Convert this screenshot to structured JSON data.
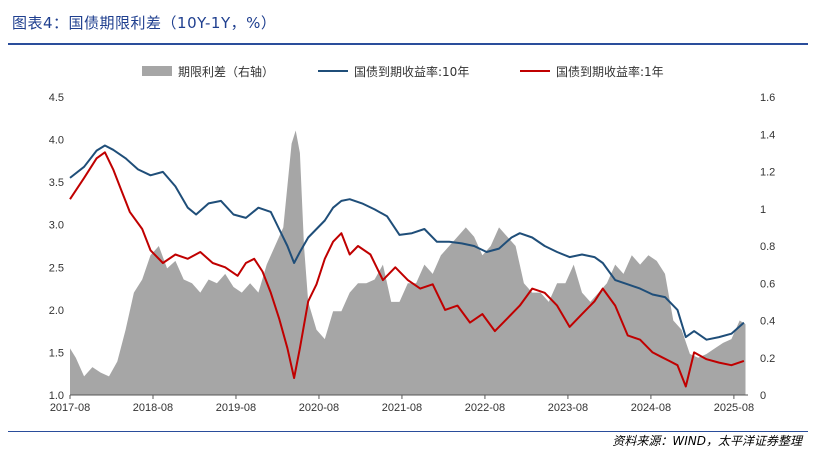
{
  "header": {
    "title": "图表4：国债期限利差（10Y-1Y，%）"
  },
  "footer": {
    "source": "资料来源：WIND，太平洋证券整理"
  },
  "colors": {
    "title": "#1f3f8f",
    "spread": "#a6a6a6",
    "ten_year": "#1f4e79",
    "one_year": "#c00000"
  },
  "chart_data": {
    "type": "line",
    "title": "国债期限利差（10Y-1Y，%）",
    "x_ticks": [
      "2017-08",
      "2018-08",
      "2019-08",
      "2020-08",
      "2021-08",
      "2022-08",
      "2023-08",
      "2024-08",
      "2025-08"
    ],
    "x_range": [
      2017.58,
      2025.75
    ],
    "y_left": {
      "ticks": [
        "4.5",
        "4.0",
        "3.5",
        "3.0",
        "2.5",
        "2.0",
        "1.5",
        "1.0"
      ],
      "range": [
        1.0,
        4.5
      ]
    },
    "y_right": {
      "ticks": [
        "1.6",
        "1.4",
        "1.2",
        "1",
        "0.8",
        "0.6",
        "0.4",
        "0.2",
        "0"
      ],
      "range": [
        0,
        1.6
      ]
    },
    "legend": [
      {
        "name": "期限利差（右轴）",
        "kind": "area"
      },
      {
        "name": "国债到期收益率:10年",
        "kind": "line"
      },
      {
        "name": "国债到期收益率:1年",
        "kind": "line"
      }
    ],
    "series": [
      {
        "name": "国债到期收益率:10年",
        "axis": "left",
        "x": [
          2017.58,
          2017.75,
          2017.9,
          2018.0,
          2018.1,
          2018.25,
          2018.4,
          2018.55,
          2018.7,
          2018.85,
          2019.0,
          2019.1,
          2019.25,
          2019.4,
          2019.55,
          2019.7,
          2019.85,
          2020.0,
          2020.1,
          2020.2,
          2020.28,
          2020.35,
          2020.45,
          2020.55,
          2020.65,
          2020.75,
          2020.85,
          2020.95,
          2021.1,
          2021.25,
          2021.4,
          2021.55,
          2021.7,
          2021.85,
          2022.0,
          2022.15,
          2022.3,
          2022.45,
          2022.6,
          2022.75,
          2022.9,
          2023.0,
          2023.15,
          2023.3,
          2023.45,
          2023.6,
          2023.75,
          2023.9,
          2024.0,
          2024.15,
          2024.3,
          2024.45,
          2024.6,
          2024.75,
          2024.9,
          2025.0,
          2025.1,
          2025.25,
          2025.4,
          2025.55,
          2025.7
        ],
        "values": [
          3.55,
          3.68,
          3.87,
          3.93,
          3.88,
          3.78,
          3.65,
          3.58,
          3.62,
          3.45,
          3.2,
          3.12,
          3.25,
          3.28,
          3.12,
          3.08,
          3.2,
          3.15,
          2.95,
          2.75,
          2.55,
          2.68,
          2.85,
          2.95,
          3.05,
          3.2,
          3.28,
          3.3,
          3.25,
          3.18,
          3.1,
          2.88,
          2.9,
          2.95,
          2.8,
          2.8,
          2.78,
          2.75,
          2.68,
          2.72,
          2.85,
          2.9,
          2.85,
          2.75,
          2.68,
          2.62,
          2.65,
          2.62,
          2.55,
          2.35,
          2.3,
          2.25,
          2.18,
          2.15,
          2.0,
          1.68,
          1.75,
          1.65,
          1.68,
          1.72,
          1.85
        ]
      },
      {
        "name": "国债到期收益率:1年",
        "axis": "left",
        "x": [
          2017.58,
          2017.75,
          2017.9,
          2018.0,
          2018.1,
          2018.2,
          2018.3,
          2018.45,
          2018.55,
          2018.7,
          2018.85,
          2019.0,
          2019.15,
          2019.3,
          2019.45,
          2019.6,
          2019.7,
          2019.8,
          2019.9,
          2020.0,
          2020.1,
          2020.2,
          2020.28,
          2020.35,
          2020.45,
          2020.55,
          2020.65,
          2020.75,
          2020.85,
          2020.95,
          2021.05,
          2021.2,
          2021.35,
          2021.5,
          2021.65,
          2021.8,
          2021.95,
          2022.1,
          2022.25,
          2022.4,
          2022.55,
          2022.7,
          2022.85,
          2023.0,
          2023.15,
          2023.3,
          2023.45,
          2023.6,
          2023.75,
          2023.9,
          2024.0,
          2024.15,
          2024.3,
          2024.45,
          2024.6,
          2024.7,
          2024.8,
          2024.9,
          2025.0,
          2025.1,
          2025.25,
          2025.4,
          2025.55,
          2025.7
        ],
        "values": [
          3.3,
          3.55,
          3.78,
          3.85,
          3.65,
          3.4,
          3.15,
          2.95,
          2.7,
          2.55,
          2.65,
          2.6,
          2.68,
          2.55,
          2.5,
          2.4,
          2.55,
          2.6,
          2.45,
          2.2,
          1.9,
          1.55,
          1.2,
          1.55,
          2.1,
          2.3,
          2.6,
          2.8,
          2.9,
          2.65,
          2.75,
          2.65,
          2.35,
          2.5,
          2.35,
          2.25,
          2.3,
          2.0,
          2.05,
          1.85,
          1.95,
          1.75,
          1.9,
          2.05,
          2.25,
          2.2,
          2.05,
          1.8,
          1.95,
          2.1,
          2.25,
          2.05,
          1.7,
          1.65,
          1.5,
          1.45,
          1.4,
          1.35,
          1.1,
          1.5,
          1.42,
          1.38,
          1.35,
          1.4
        ]
      },
      {
        "name": "期限利差（右轴）",
        "axis": "right",
        "x": [
          2017.58,
          2017.65,
          2017.75,
          2017.85,
          2017.95,
          2018.05,
          2018.15,
          2018.25,
          2018.35,
          2018.45,
          2018.55,
          2018.65,
          2018.75,
          2018.85,
          2018.95,
          2019.05,
          2019.15,
          2019.25,
          2019.35,
          2019.45,
          2019.55,
          2019.65,
          2019.75,
          2019.85,
          2019.95,
          2020.05,
          2020.15,
          2020.25,
          2020.3,
          2020.35,
          2020.4,
          2020.45,
          2020.55,
          2020.65,
          2020.75,
          2020.85,
          2020.95,
          2021.05,
          2021.15,
          2021.25,
          2021.35,
          2021.45,
          2021.55,
          2021.65,
          2021.75,
          2021.85,
          2021.95,
          2022.05,
          2022.15,
          2022.25,
          2022.35,
          2022.45,
          2022.55,
          2022.65,
          2022.75,
          2022.85,
          2022.95,
          2023.05,
          2023.15,
          2023.25,
          2023.35,
          2023.45,
          2023.55,
          2023.65,
          2023.75,
          2023.85,
          2023.95,
          2024.05,
          2024.15,
          2024.25,
          2024.35,
          2024.45,
          2024.55,
          2024.65,
          2024.75,
          2024.85,
          2024.95,
          2025.05,
          2025.15,
          2025.25,
          2025.35,
          2025.45,
          2025.55,
          2025.65,
          2025.72
        ],
        "values": [
          0.25,
          0.2,
          0.1,
          0.15,
          0.12,
          0.1,
          0.18,
          0.35,
          0.55,
          0.62,
          0.75,
          0.8,
          0.68,
          0.72,
          0.62,
          0.6,
          0.55,
          0.62,
          0.6,
          0.65,
          0.58,
          0.55,
          0.6,
          0.55,
          0.7,
          0.8,
          0.9,
          1.35,
          1.42,
          1.3,
          0.8,
          0.5,
          0.35,
          0.3,
          0.45,
          0.45,
          0.55,
          0.6,
          0.6,
          0.62,
          0.7,
          0.5,
          0.5,
          0.6,
          0.6,
          0.7,
          0.65,
          0.75,
          0.8,
          0.85,
          0.9,
          0.85,
          0.75,
          0.8,
          0.9,
          0.85,
          0.8,
          0.6,
          0.55,
          0.55,
          0.5,
          0.6,
          0.6,
          0.7,
          0.55,
          0.5,
          0.55,
          0.6,
          0.7,
          0.65,
          0.75,
          0.7,
          0.75,
          0.72,
          0.65,
          0.4,
          0.35,
          0.22,
          0.2,
          0.22,
          0.25,
          0.28,
          0.3,
          0.4,
          0.38
        ]
      }
    ]
  }
}
